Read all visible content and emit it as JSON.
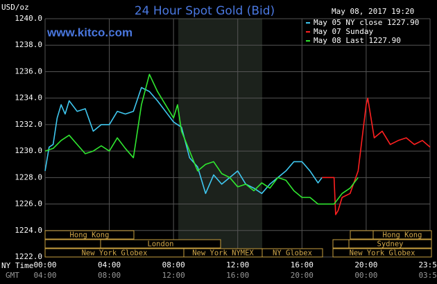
{
  "chart_data": {
    "type": "line",
    "title": "24 Hour Spot Gold (Bid)",
    "unit_label": "USD/oz",
    "timestamp": "May 08, 2017 19:20",
    "watermark": "www.kitco.com",
    "x_axis_label": "NY Time",
    "x2_axis_label": "GMT",
    "xlim": [
      0,
      23.98
    ],
    "ylim": [
      1222,
      1240
    ],
    "grid": true,
    "xticks": [
      {
        "value": 0,
        "label": "00:00"
      },
      {
        "value": 4,
        "label": "04:00"
      },
      {
        "value": 8,
        "label": "08:00"
      },
      {
        "value": 12,
        "label": "12:00"
      },
      {
        "value": 16,
        "label": "16:00"
      },
      {
        "value": 20,
        "label": "20:00"
      },
      {
        "value": 23.98,
        "label": "23:59"
      }
    ],
    "x2ticks": [
      {
        "value": 0,
        "label": "04:00"
      },
      {
        "value": 4,
        "label": "08:00"
      },
      {
        "value": 8,
        "label": "12:00"
      },
      {
        "value": 12,
        "label": "16:00"
      },
      {
        "value": 16,
        "label": "20:00"
      },
      {
        "value": 20,
        "label": "00:00"
      },
      {
        "value": 23.98,
        "label": "03:59"
      }
    ],
    "yticks": [
      {
        "value": 1222,
        "label": "1222.0"
      },
      {
        "value": 1224,
        "label": "1224.0"
      },
      {
        "value": 1226,
        "label": "1226.0"
      },
      {
        "value": 1228,
        "label": "1228.0"
      },
      {
        "value": 1230,
        "label": "1230.0"
      },
      {
        "value": 1232,
        "label": "1232.0"
      },
      {
        "value": 1234,
        "label": "1234.0"
      },
      {
        "value": 1236,
        "label": "1236.0"
      },
      {
        "value": 1238,
        "label": "1238.0"
      },
      {
        "value": 1240,
        "label": "1240.0"
      }
    ],
    "series": [
      {
        "name": "May 05 NY close 1227.90",
        "color": "#3fc8f0",
        "x": [
          0,
          0.25,
          0.5,
          0.75,
          1,
          1.25,
          1.5,
          2,
          2.5,
          3,
          3.5,
          4,
          4.5,
          5,
          5.5,
          6,
          6.5,
          7,
          7.5,
          8,
          8.5,
          9,
          9.5,
          10,
          10.5,
          11,
          11.5,
          12,
          12.5,
          13,
          13.5,
          14,
          14.5,
          15,
          15.5,
          16,
          16.5,
          17,
          17.25
        ],
        "values": [
          1228.5,
          1230.3,
          1230.5,
          1232.5,
          1233.5,
          1232.8,
          1233.8,
          1233.0,
          1233.2,
          1231.5,
          1232.0,
          1232.0,
          1233.0,
          1232.8,
          1233.0,
          1234.8,
          1234.5,
          1233.8,
          1233.0,
          1232.2,
          1231.8,
          1229.5,
          1228.8,
          1226.8,
          1228.2,
          1227.5,
          1228.0,
          1228.5,
          1227.5,
          1227.2,
          1226.8,
          1227.5,
          1228.0,
          1228.5,
          1229.2,
          1229.2,
          1228.5,
          1227.6,
          1228.0
        ]
      },
      {
        "name": "May 07 Sunday",
        "color": "#ff2020",
        "x": [
          17.25,
          18,
          18.1,
          18.25,
          18.5,
          19,
          19.5,
          20,
          20.1,
          20.5,
          21,
          21.5,
          22,
          22.5,
          23,
          23.5,
          23.98
        ],
        "values": [
          1228.0,
          1228.0,
          1225.2,
          1225.5,
          1226.5,
          1226.8,
          1228.5,
          1233.5,
          1234.0,
          1231.0,
          1231.5,
          1230.5,
          1230.8,
          1231.0,
          1230.5,
          1230.8,
          1230.3
        ]
      },
      {
        "name": "May 08 Last 1227.90",
        "color": "#30e830",
        "x": [
          0,
          0.5,
          1,
          1.5,
          2,
          2.5,
          3,
          3.5,
          4,
          4.5,
          5,
          5.5,
          6,
          6.5,
          7,
          7.5,
          8,
          8.25,
          8.5,
          9,
          9.5,
          10,
          10.5,
          11,
          11.5,
          12,
          12.5,
          13,
          13.5,
          14,
          14.5,
          15,
          15.5,
          16,
          16.5,
          17,
          18,
          18.5,
          19,
          19.5
        ],
        "values": [
          1230.0,
          1230.2,
          1230.8,
          1231.2,
          1230.5,
          1229.8,
          1230.0,
          1230.4,
          1230.0,
          1231.0,
          1230.2,
          1229.5,
          1233.5,
          1235.8,
          1234.5,
          1233.5,
          1232.5,
          1233.5,
          1231.5,
          1230.0,
          1228.5,
          1229.0,
          1229.2,
          1228.3,
          1228.0,
          1227.3,
          1227.5,
          1227.0,
          1227.6,
          1227.2,
          1228.0,
          1227.8,
          1227.0,
          1226.5,
          1226.5,
          1226.0,
          1226.0,
          1226.8,
          1227.2,
          1228.0
        ]
      }
    ],
    "sessions": [
      "Hong Kong",
      "London",
      "New York Globex",
      "New York NYMEX",
      "NY Globex",
      "Hong Kong",
      "Sydney",
      "New York Globex"
    ]
  }
}
